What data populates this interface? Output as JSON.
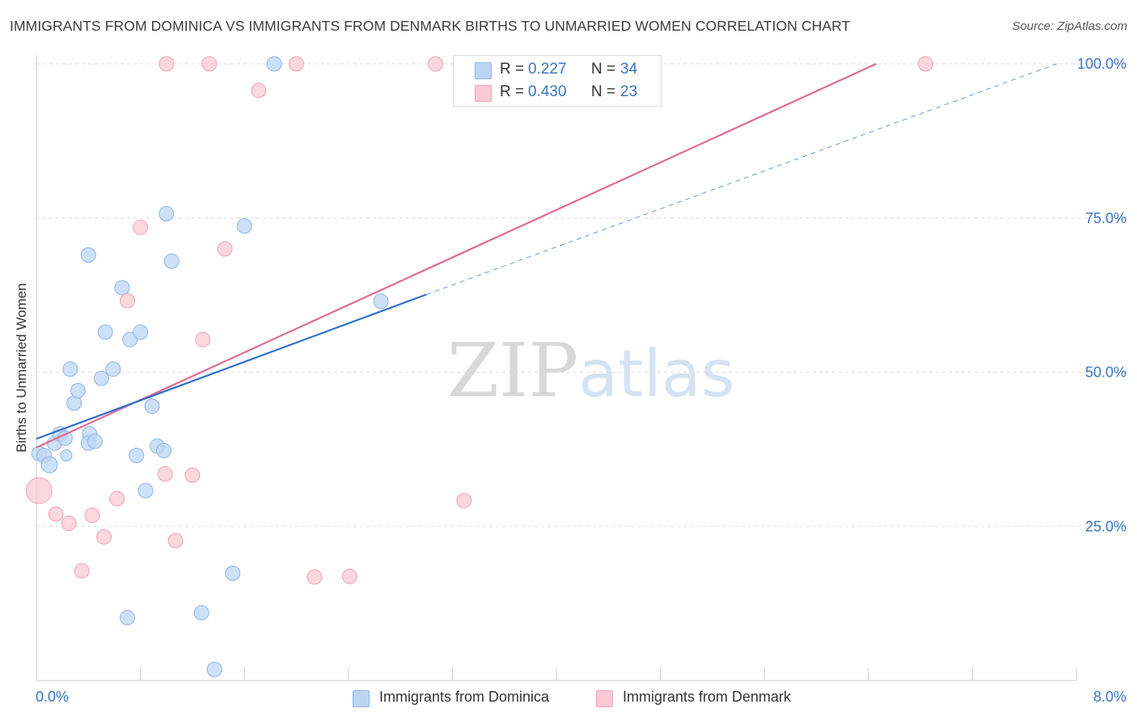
{
  "title": "IMMIGRANTS FROM DOMINICA VS IMMIGRANTS FROM DENMARK BIRTHS TO UNMARRIED WOMEN CORRELATION CHART",
  "source": "Source: ZipAtlas.com",
  "watermark": {
    "zip": "ZIP",
    "atlas": "atlas"
  },
  "legend": {
    "r_label": "R =",
    "n_label": "N =",
    "entries": [
      {
        "r": "0.227",
        "n": "34"
      },
      {
        "r": "0.430",
        "n": "23"
      }
    ]
  },
  "bottom_legend": [
    "Immigrants from Dominica",
    "Immigrants from Denmark"
  ],
  "colors": {
    "dominica_fill": "#bcd5f3",
    "dominica_stroke": "#8db6e6",
    "dominica_line": "#2e6fc9",
    "denmark_fill": "#f9c9d6",
    "denmark_stroke": "#f0a2b7",
    "denmark_line": "#e06a95",
    "axis_text": "#3a74c4",
    "grid": "#dddddd"
  },
  "chart_data": {
    "type": "scatter",
    "title": "IMMIGRANTS FROM DOMINICA VS IMMIGRANTS FROM DENMARK BIRTHS TO UNMARRIED WOMEN CORRELATION CHART",
    "xlabel": "",
    "ylabel": "Births to Unmarried Women",
    "xlim": [
      0,
      8
    ],
    "ylim": [
      0,
      100
    ],
    "x_tick_labels": [
      "0.0%",
      "8.0%"
    ],
    "y_ticks": [
      25,
      50,
      75,
      100
    ],
    "y_tick_labels": [
      "25.0%",
      "50.0%",
      "75.0%",
      "100.0%"
    ],
    "grid": true,
    "legend_position": "top-center",
    "series": [
      {
        "name": "Immigrants from Dominica",
        "R": 0.227,
        "N": 34,
        "points": [
          [
            0.02,
            36.8,
            9
          ],
          [
            0.06,
            36.5,
            9
          ],
          [
            0.1,
            35.0,
            10
          ],
          [
            0.14,
            38.5,
            9
          ],
          [
            0.18,
            40.0,
            9
          ],
          [
            0.22,
            39.3,
            9
          ],
          [
            0.26,
            50.5,
            9
          ],
          [
            0.29,
            45.0,
            9
          ],
          [
            0.32,
            47.0,
            9
          ],
          [
            0.4,
            69.0,
            9
          ],
          [
            0.41,
            40.0,
            9
          ],
          [
            0.4,
            38.5,
            9
          ],
          [
            0.45,
            38.8,
            9
          ],
          [
            0.5,
            49.0,
            9
          ],
          [
            0.53,
            56.5,
            9
          ],
          [
            0.59,
            50.5,
            9
          ],
          [
            0.66,
            63.7,
            9
          ],
          [
            0.72,
            55.3,
            9
          ],
          [
            0.8,
            56.5,
            9
          ],
          [
            0.77,
            36.5,
            9
          ],
          [
            0.84,
            30.8,
            9
          ],
          [
            0.7,
            10.2,
            9
          ],
          [
            0.89,
            44.5,
            9
          ],
          [
            0.93,
            38.0,
            9
          ],
          [
            0.98,
            37.3,
            9
          ],
          [
            1.0,
            75.7,
            9
          ],
          [
            1.04,
            68.0,
            9
          ],
          [
            1.27,
            11.0,
            9
          ],
          [
            1.37,
            1.8,
            9
          ],
          [
            1.51,
            17.4,
            9
          ],
          [
            1.6,
            73.7,
            9
          ],
          [
            1.83,
            100.0,
            9
          ],
          [
            2.65,
            61.5,
            9
          ],
          [
            0.23,
            36.5,
            7
          ]
        ],
        "trend": {
          "x": [
            0,
            3.0
          ],
          "y": [
            39.2,
            62.6
          ]
        },
        "trend_extension": {
          "x": [
            3.0,
            7.85
          ],
          "y": [
            62.6,
            100.0
          ]
        }
      },
      {
        "name": "Immigrants from Denmark",
        "R": 0.43,
        "N": 23,
        "points": [
          [
            0.02,
            30.8,
            16
          ],
          [
            0.15,
            27.0,
            9
          ],
          [
            0.25,
            25.5,
            9
          ],
          [
            0.35,
            17.8,
            9
          ],
          [
            0.43,
            26.8,
            9
          ],
          [
            0.52,
            23.3,
            9
          ],
          [
            0.62,
            29.5,
            9
          ],
          [
            0.7,
            61.6,
            9
          ],
          [
            0.8,
            73.5,
            9
          ],
          [
            0.99,
            33.5,
            9
          ],
          [
            1.0,
            100.0,
            9
          ],
          [
            1.07,
            22.7,
            9
          ],
          [
            1.2,
            33.3,
            9
          ],
          [
            1.28,
            55.3,
            9
          ],
          [
            1.33,
            100.0,
            9
          ],
          [
            1.45,
            70.0,
            9
          ],
          [
            1.71,
            95.7,
            9
          ],
          [
            2.0,
            100.0,
            9
          ],
          [
            2.14,
            16.8,
            9
          ],
          [
            2.41,
            16.9,
            9
          ],
          [
            3.07,
            100.0,
            9
          ],
          [
            3.29,
            29.2,
            9
          ],
          [
            6.84,
            100.0,
            9
          ]
        ],
        "trend": {
          "x": [
            0,
            6.46
          ],
          "y": [
            37.8,
            100.0
          ]
        }
      }
    ]
  }
}
